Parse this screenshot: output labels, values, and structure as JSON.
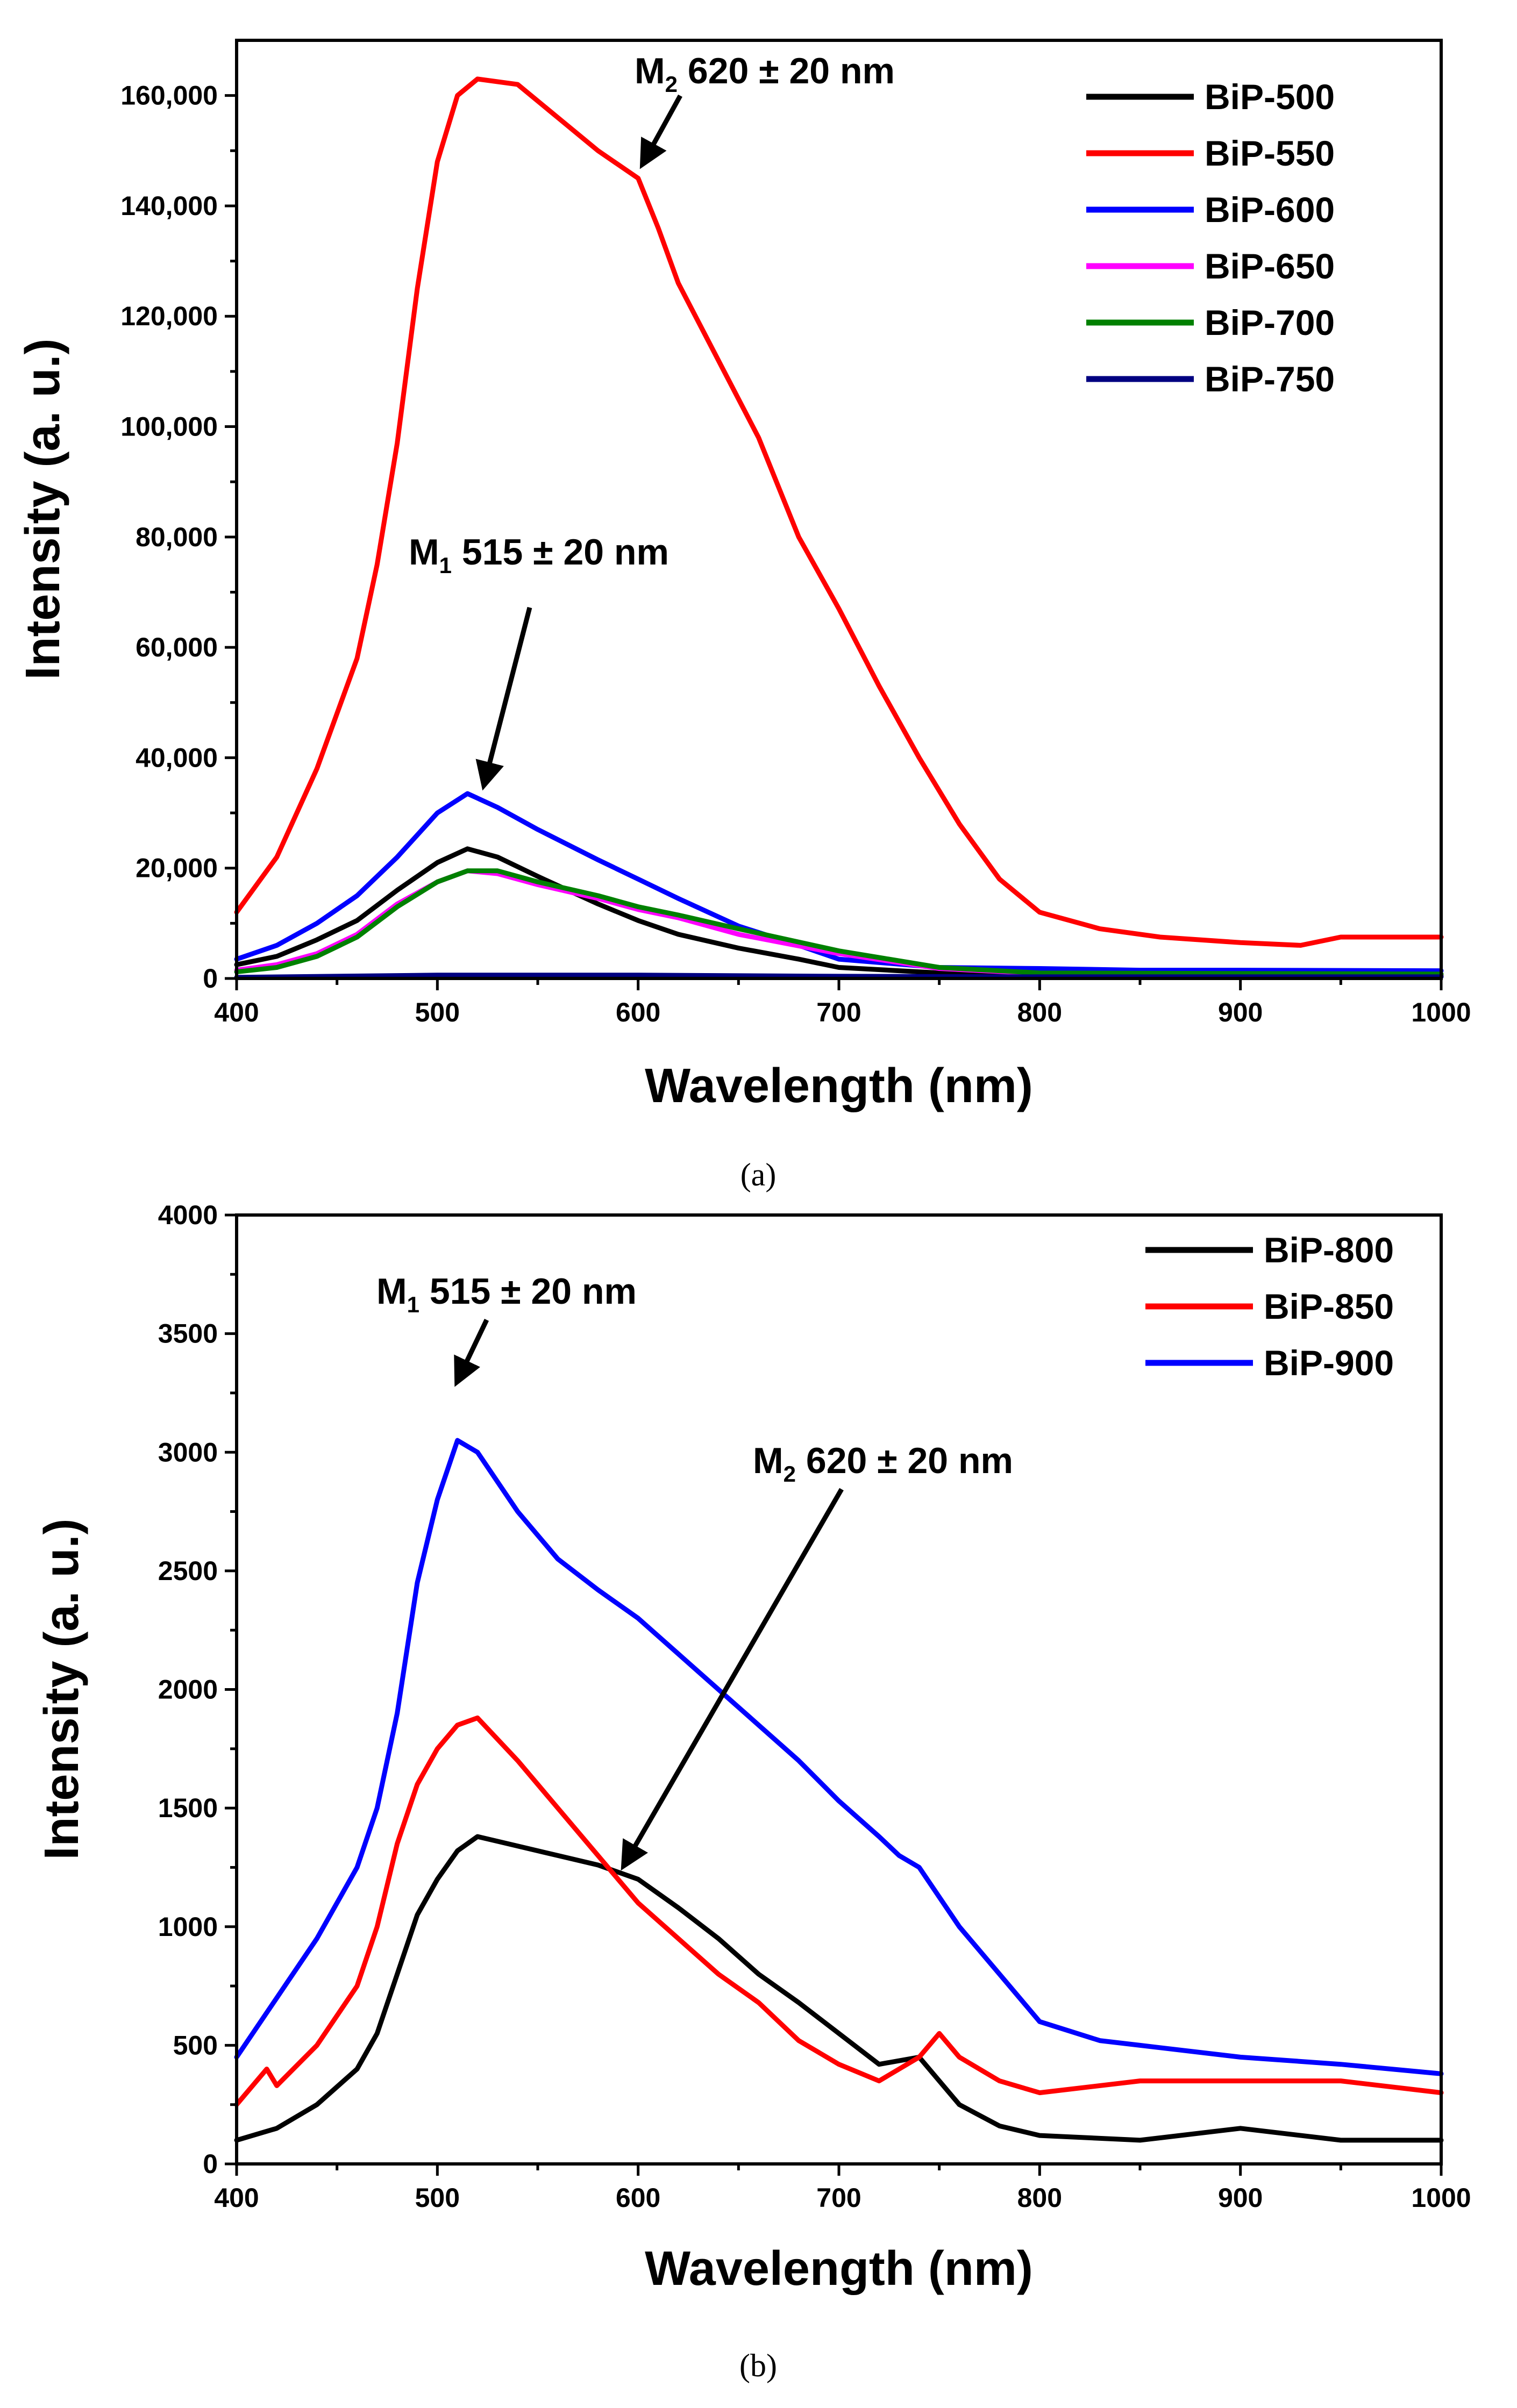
{
  "chart_data": [
    {
      "type": "line",
      "panel": "(a)",
      "xlabel": "Wavelength (nm)",
      "ylabel": "Intensity (a. u.)",
      "xlim": [
        400,
        1000
      ],
      "ylim": [
        0,
        170000
      ],
      "xticks": [
        400,
        500,
        600,
        700,
        800,
        900,
        1000
      ],
      "yticks": [
        0,
        20000,
        40000,
        60000,
        80000,
        100000,
        120000,
        140000,
        160000
      ],
      "ytick_labels": [
        "0",
        "20,000",
        "40,000",
        "60,000",
        "80,000",
        "100,000",
        "120,000",
        "140,000",
        "160,000"
      ],
      "legend_position": "top-right",
      "annotations": [
        {
          "main": "M",
          "sub": "2",
          "rest": " 620 ± 20 nm",
          "points_to": [
            600,
            145000
          ]
        },
        {
          "main": "M",
          "sub": "1",
          "rest": " 515 ± 20 nm",
          "points_to": [
            515,
            34000
          ]
        }
      ],
      "series": [
        {
          "name": "BiP-500",
          "color": "#000000",
          "x": [
            400,
            420,
            440,
            460,
            480,
            500,
            515,
            530,
            550,
            580,
            600,
            620,
            650,
            680,
            700,
            750,
            800,
            900,
            1000
          ],
          "values": [
            2500,
            4000,
            7000,
            10500,
            16000,
            21000,
            23500,
            22000,
            18500,
            13500,
            10500,
            8000,
            5500,
            3500,
            2000,
            1000,
            700,
            500,
            500
          ]
        },
        {
          "name": "BiP-550",
          "color": "#ff0000",
          "x": [
            400,
            420,
            440,
            460,
            470,
            480,
            490,
            500,
            510,
            520,
            540,
            560,
            580,
            600,
            610,
            620,
            640,
            660,
            680,
            700,
            720,
            740,
            760,
            780,
            800,
            830,
            860,
            900,
            930,
            950,
            1000
          ],
          "values": [
            12000,
            22000,
            38000,
            58000,
            75000,
            97000,
            125000,
            148000,
            160000,
            163000,
            162000,
            156000,
            150000,
            145000,
            136000,
            126000,
            112000,
            98000,
            80000,
            67000,
            53000,
            40000,
            28000,
            18000,
            12000,
            9000,
            7500,
            6500,
            6000,
            7500,
            7500
          ]
        },
        {
          "name": "BiP-600",
          "color": "#0000ff",
          "x": [
            400,
            420,
            440,
            460,
            480,
            500,
            515,
            530,
            550,
            580,
            600,
            620,
            650,
            680,
            700,
            750,
            800,
            850,
            900,
            1000
          ],
          "values": [
            3500,
            6000,
            10000,
            15000,
            22000,
            30000,
            33500,
            31000,
            27000,
            21500,
            18000,
            14500,
            9500,
            6000,
            3500,
            2000,
            1800,
            1500,
            1500,
            1400
          ]
        },
        {
          "name": "BiP-650",
          "color": "#ff00ff",
          "x": [
            400,
            420,
            440,
            460,
            480,
            500,
            515,
            530,
            550,
            580,
            600,
            620,
            650,
            700,
            750,
            800,
            1000
          ],
          "values": [
            1500,
            2500,
            4500,
            8000,
            13500,
            17500,
            19500,
            19000,
            17000,
            14500,
            12500,
            11000,
            8000,
            4500,
            1800,
            900,
            700
          ]
        },
        {
          "name": "BiP-700",
          "color": "#008000",
          "x": [
            400,
            420,
            440,
            460,
            480,
            500,
            515,
            530,
            550,
            580,
            600,
            620,
            650,
            700,
            750,
            800,
            1000
          ],
          "values": [
            1200,
            2000,
            4000,
            7500,
            13000,
            17500,
            19500,
            19500,
            17500,
            15000,
            13000,
            11500,
            9000,
            5000,
            2000,
            1000,
            800
          ]
        },
        {
          "name": "BiP-750",
          "color": "#000080",
          "x": [
            400,
            500,
            600,
            700,
            800,
            1000
          ],
          "values": [
            200,
            600,
            600,
            400,
            300,
            300
          ]
        }
      ]
    },
    {
      "type": "line",
      "panel": "(b)",
      "xlabel": "Wavelength (nm)",
      "ylabel": "Intensity (a. u.)",
      "xlim": [
        400,
        1000
      ],
      "ylim": [
        0,
        4000
      ],
      "xticks": [
        400,
        500,
        600,
        700,
        800,
        900,
        1000
      ],
      "yticks": [
        0,
        500,
        1000,
        1500,
        2000,
        2500,
        3000,
        3500,
        4000
      ],
      "ytick_labels": [
        "0",
        "500",
        "1000",
        "1500",
        "2000",
        "2500",
        "3000",
        "3500",
        "4000"
      ],
      "legend_position": "top-right",
      "annotations": [
        {
          "main": "M",
          "sub": "1",
          "rest": " 515 ± 20 nm",
          "points_to": [
            510,
            3100
          ]
        },
        {
          "main": "M",
          "sub": "2",
          "rest": " 620 ± 20 nm",
          "points_to": [
            585,
            1280
          ]
        }
      ],
      "series": [
        {
          "name": "BiP-800",
          "color": "#000000",
          "x": [
            400,
            420,
            440,
            460,
            470,
            480,
            490,
            500,
            510,
            520,
            540,
            560,
            580,
            600,
            620,
            640,
            660,
            680,
            700,
            720,
            740,
            750,
            760,
            780,
            800,
            850,
            900,
            950,
            1000
          ],
          "values": [
            100,
            150,
            250,
            400,
            550,
            800,
            1050,
            1200,
            1320,
            1380,
            1340,
            1300,
            1260,
            1200,
            1080,
            950,
            800,
            680,
            550,
            420,
            450,
            350,
            250,
            160,
            120,
            100,
            150,
            100,
            100
          ]
        },
        {
          "name": "BiP-850",
          "color": "#ff0000",
          "x": [
            400,
            415,
            420,
            440,
            460,
            470,
            480,
            490,
            500,
            510,
            520,
            540,
            560,
            580,
            600,
            620,
            640,
            660,
            680,
            700,
            720,
            740,
            750,
            760,
            780,
            800,
            850,
            900,
            950,
            1000
          ],
          "values": [
            250,
            400,
            330,
            500,
            750,
            1000,
            1350,
            1600,
            1750,
            1850,
            1880,
            1700,
            1500,
            1300,
            1100,
            950,
            800,
            680,
            520,
            420,
            350,
            450,
            550,
            450,
            350,
            300,
            350,
            350,
            350,
            300
          ]
        },
        {
          "name": "BiP-900",
          "color": "#0000ff",
          "x": [
            400,
            420,
            440,
            460,
            470,
            480,
            490,
            500,
            510,
            520,
            540,
            560,
            580,
            600,
            620,
            640,
            660,
            680,
            700,
            720,
            730,
            740,
            760,
            780,
            800,
            830,
            850,
            900,
            950,
            1000
          ],
          "values": [
            450,
            700,
            950,
            1250,
            1500,
            1900,
            2450,
            2800,
            3050,
            3000,
            2750,
            2550,
            2420,
            2300,
            2150,
            2000,
            1850,
            1700,
            1530,
            1380,
            1300,
            1250,
            1000,
            800,
            600,
            520,
            500,
            450,
            420,
            380
          ]
        }
      ]
    }
  ],
  "captions": {
    "a": "(a)",
    "b": "(b)"
  }
}
